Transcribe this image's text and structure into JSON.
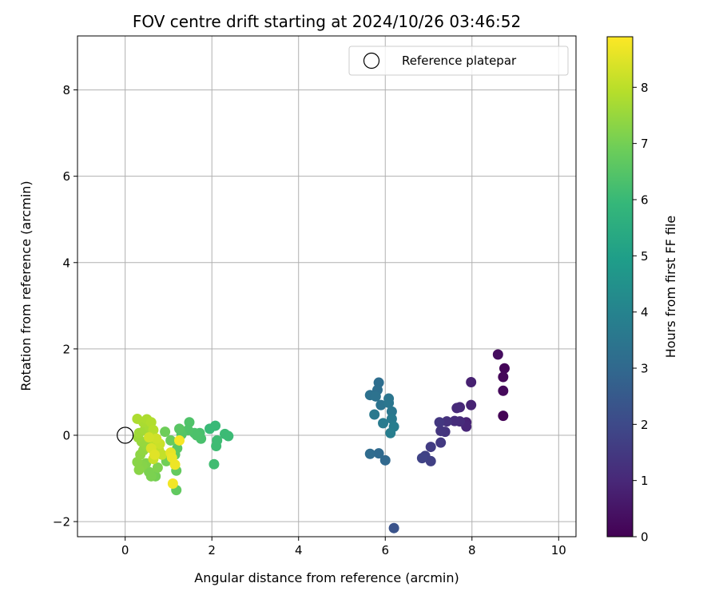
{
  "chart_data": {
    "type": "scatter",
    "title": "FOV centre drift starting at 2024/10/26 03:46:52",
    "xlabel": "Angular distance from reference (arcmin)",
    "ylabel": "Rotation from reference (arcmin)",
    "xlim": [
      -1.1,
      10.4
    ],
    "ylim": [
      -2.35,
      9.25
    ],
    "xticks": [
      0,
      2,
      4,
      6,
      8,
      10
    ],
    "xtick_labels": [
      "0",
      "2",
      "4",
      "6",
      "8",
      "10"
    ],
    "yticks": [
      -2,
      0,
      2,
      4,
      6,
      8
    ],
    "ytick_labels": [
      "−2",
      "0",
      "2",
      "4",
      "6",
      "8"
    ],
    "grid": true,
    "legend": {
      "placement": "top-right",
      "entries": [
        "Reference platepar"
      ]
    },
    "reference": {
      "x": 0,
      "y": 0,
      "label": "Reference platepar"
    },
    "colorbar": {
      "label": "Hours from first FF file",
      "range": [
        0,
        8.9
      ],
      "ticks": [
        0,
        1,
        2,
        3,
        4,
        5,
        6,
        7,
        8
      ],
      "tick_labels": [
        "0",
        "1",
        "2",
        "3",
        "4",
        "5",
        "6",
        "7",
        "8"
      ],
      "colormap": "viridis"
    },
    "colormap_stops": [
      "#440154",
      "#482878",
      "#3e4989",
      "#31688e",
      "#26828e",
      "#1f9e89",
      "#35b779",
      "#6ece58",
      "#b5de2b",
      "#fde725"
    ],
    "points": [
      {
        "x": 8.72,
        "y": 0.45,
        "t": 0.05
      },
      {
        "x": 8.75,
        "y": 1.55,
        "t": 0.1
      },
      {
        "x": 8.72,
        "y": 1.35,
        "t": 0.15
      },
      {
        "x": 8.72,
        "y": 1.03,
        "t": 0.2
      },
      {
        "x": 8.6,
        "y": 1.87,
        "t": 0.3
      },
      {
        "x": 7.98,
        "y": 1.23,
        "t": 0.8
      },
      {
        "x": 7.98,
        "y": 0.7,
        "t": 0.85
      },
      {
        "x": 7.87,
        "y": 0.3,
        "t": 0.9
      },
      {
        "x": 7.87,
        "y": 0.2,
        "t": 0.95
      },
      {
        "x": 7.72,
        "y": 0.65,
        "t": 1.0
      },
      {
        "x": 7.65,
        "y": 0.63,
        "t": 1.05
      },
      {
        "x": 7.72,
        "y": 0.32,
        "t": 1.1
      },
      {
        "x": 7.6,
        "y": 0.33,
        "t": 1.15
      },
      {
        "x": 7.42,
        "y": 0.32,
        "t": 1.3
      },
      {
        "x": 7.38,
        "y": 0.08,
        "t": 1.35
      },
      {
        "x": 7.28,
        "y": 0.1,
        "t": 1.4
      },
      {
        "x": 7.25,
        "y": 0.3,
        "t": 1.45
      },
      {
        "x": 7.28,
        "y": -0.17,
        "t": 1.5
      },
      {
        "x": 7.05,
        "y": -0.27,
        "t": 1.6
      },
      {
        "x": 7.05,
        "y": -0.6,
        "t": 1.7
      },
      {
        "x": 6.92,
        "y": -0.48,
        "t": 1.75
      },
      {
        "x": 6.85,
        "y": -0.53,
        "t": 1.8
      },
      {
        "x": 6.2,
        "y": -2.15,
        "t": 2.3
      },
      {
        "x": 6.0,
        "y": -0.58,
        "t": 3.0
      },
      {
        "x": 5.85,
        "y": -0.42,
        "t": 3.05
      },
      {
        "x": 5.65,
        "y": -0.43,
        "t": 3.1
      },
      {
        "x": 5.85,
        "y": 1.22,
        "t": 3.2
      },
      {
        "x": 5.82,
        "y": 1.05,
        "t": 3.25
      },
      {
        "x": 5.65,
        "y": 0.93,
        "t": 3.3
      },
      {
        "x": 5.78,
        "y": 0.9,
        "t": 3.35
      },
      {
        "x": 5.9,
        "y": 0.7,
        "t": 3.4
      },
      {
        "x": 6.08,
        "y": 0.85,
        "t": 3.45
      },
      {
        "x": 6.08,
        "y": 0.75,
        "t": 3.5
      },
      {
        "x": 6.15,
        "y": 0.55,
        "t": 3.55
      },
      {
        "x": 5.75,
        "y": 0.48,
        "t": 3.6
      },
      {
        "x": 6.15,
        "y": 0.38,
        "t": 3.65
      },
      {
        "x": 5.95,
        "y": 0.28,
        "t": 3.7
      },
      {
        "x": 6.2,
        "y": 0.2,
        "t": 3.75
      },
      {
        "x": 6.12,
        "y": 0.05,
        "t": 3.8
      },
      {
        "x": 2.08,
        "y": 0.22,
        "t": 6.0
      },
      {
        "x": 1.95,
        "y": 0.15,
        "t": 6.0
      },
      {
        "x": 2.3,
        "y": 0.03,
        "t": 6.05
      },
      {
        "x": 2.38,
        "y": -0.02,
        "t": 6.05
      },
      {
        "x": 2.12,
        "y": -0.12,
        "t": 6.1
      },
      {
        "x": 2.1,
        "y": -0.25,
        "t": 6.1
      },
      {
        "x": 2.05,
        "y": -0.67,
        "t": 6.15
      },
      {
        "x": 1.75,
        "y": -0.08,
        "t": 6.3
      },
      {
        "x": 1.72,
        "y": 0.05,
        "t": 6.3
      },
      {
        "x": 1.65,
        "y": 0.0,
        "t": 6.35
      },
      {
        "x": 1.6,
        "y": 0.05,
        "t": 6.35
      },
      {
        "x": 1.48,
        "y": 0.3,
        "t": 6.4
      },
      {
        "x": 1.45,
        "y": 0.12,
        "t": 6.4
      },
      {
        "x": 1.3,
        "y": 0.02,
        "t": 6.5
      },
      {
        "x": 1.25,
        "y": 0.15,
        "t": 6.55
      },
      {
        "x": 1.2,
        "y": -0.3,
        "t": 6.6
      },
      {
        "x": 1.15,
        "y": -0.45,
        "t": 6.65
      },
      {
        "x": 1.18,
        "y": -1.27,
        "t": 6.7
      },
      {
        "x": 1.18,
        "y": -0.82,
        "t": 6.75
      },
      {
        "x": 1.05,
        "y": -0.12,
        "t": 6.8
      },
      {
        "x": 0.92,
        "y": 0.08,
        "t": 6.9
      },
      {
        "x": 0.95,
        "y": -0.6,
        "t": 6.95
      },
      {
        "x": 0.7,
        "y": -0.95,
        "t": 7.0
      },
      {
        "x": 0.6,
        "y": -0.95,
        "t": 7.1
      },
      {
        "x": 0.55,
        "y": -0.85,
        "t": 7.1
      },
      {
        "x": 0.75,
        "y": -0.75,
        "t": 7.15
      },
      {
        "x": 0.48,
        "y": -0.65,
        "t": 7.2
      },
      {
        "x": 0.4,
        "y": -0.7,
        "t": 7.25
      },
      {
        "x": 0.32,
        "y": -0.8,
        "t": 7.3
      },
      {
        "x": 0.28,
        "y": -0.62,
        "t": 7.3
      },
      {
        "x": 0.35,
        "y": -0.45,
        "t": 7.35
      },
      {
        "x": 0.42,
        "y": -0.35,
        "t": 7.4
      },
      {
        "x": 0.5,
        "y": -0.25,
        "t": 7.45
      },
      {
        "x": 0.38,
        "y": -0.15,
        "t": 7.5
      },
      {
        "x": 0.3,
        "y": -0.05,
        "t": 7.55
      },
      {
        "x": 0.32,
        "y": 0.05,
        "t": 7.6
      },
      {
        "x": 0.45,
        "y": 0.12,
        "t": 7.65
      },
      {
        "x": 0.55,
        "y": 0.2,
        "t": 7.7
      },
      {
        "x": 0.42,
        "y": 0.3,
        "t": 7.75
      },
      {
        "x": 0.5,
        "y": 0.37,
        "t": 7.8
      },
      {
        "x": 0.28,
        "y": 0.38,
        "t": 7.8
      },
      {
        "x": 0.6,
        "y": 0.3,
        "t": 7.85
      },
      {
        "x": 0.65,
        "y": 0.12,
        "t": 7.9
      },
      {
        "x": 0.6,
        "y": -0.05,
        "t": 7.95
      },
      {
        "x": 0.7,
        "y": -0.2,
        "t": 8.0
      },
      {
        "x": 0.78,
        "y": -0.35,
        "t": 8.05
      },
      {
        "x": 0.85,
        "y": -0.45,
        "t": 8.1
      },
      {
        "x": 0.65,
        "y": -0.55,
        "t": 8.15
      },
      {
        "x": 0.8,
        "y": -0.2,
        "t": 8.2
      },
      {
        "x": 0.72,
        "y": -0.08,
        "t": 8.25
      },
      {
        "x": 0.55,
        "y": -0.05,
        "t": 8.3
      },
      {
        "x": 0.6,
        "y": -0.3,
        "t": 8.4
      },
      {
        "x": 0.68,
        "y": -0.45,
        "t": 8.5
      },
      {
        "x": 1.05,
        "y": -0.4,
        "t": 8.6
      },
      {
        "x": 1.08,
        "y": -0.52,
        "t": 8.65
      },
      {
        "x": 1.15,
        "y": -0.68,
        "t": 8.7
      },
      {
        "x": 1.1,
        "y": -1.12,
        "t": 8.75
      },
      {
        "x": 1.25,
        "y": -0.12,
        "t": 8.8
      }
    ]
  }
}
